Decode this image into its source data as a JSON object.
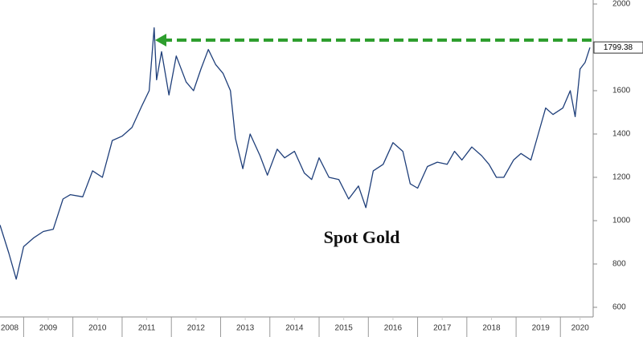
{
  "chart_data": {
    "type": "line",
    "annotation": "Spot Gold",
    "x": [
      2008.52,
      2008.7,
      2008.85,
      2009.0,
      2009.2,
      2009.4,
      2009.6,
      2009.8,
      2009.95,
      2010.2,
      2010.4,
      2010.6,
      2010.8,
      2011.0,
      2011.2,
      2011.4,
      2011.55,
      2011.65,
      2011.7,
      2011.8,
      2011.95,
      2012.1,
      2012.3,
      2012.45,
      2012.6,
      2012.75,
      2012.9,
      2013.05,
      2013.2,
      2013.3,
      2013.45,
      2013.6,
      2013.8,
      2013.95,
      2014.15,
      2014.3,
      2014.5,
      2014.7,
      2014.85,
      2015.0,
      2015.2,
      2015.4,
      2015.6,
      2015.8,
      2015.95,
      2016.1,
      2016.3,
      2016.5,
      2016.7,
      2016.85,
      2017.0,
      2017.2,
      2017.4,
      2017.6,
      2017.75,
      2017.9,
      2018.1,
      2018.3,
      2018.45,
      2018.6,
      2018.75,
      2018.95,
      2019.1,
      2019.3,
      2019.45,
      2019.6,
      2019.75,
      2019.95,
      2020.1,
      2020.2,
      2020.3,
      2020.4,
      2020.5
    ],
    "series": [
      {
        "color": "#1f3f7a",
        "values": [
          980,
          850,
          730,
          880,
          920,
          950,
          960,
          1100,
          1120,
          1110,
          1230,
          1200,
          1370,
          1390,
          1430,
          1530,
          1600,
          1890,
          1650,
          1780,
          1580,
          1760,
          1640,
          1600,
          1700,
          1790,
          1720,
          1680,
          1600,
          1380,
          1240,
          1400,
          1300,
          1210,
          1330,
          1290,
          1320,
          1220,
          1190,
          1290,
          1200,
          1190,
          1100,
          1160,
          1060,
          1230,
          1260,
          1360,
          1320,
          1170,
          1150,
          1250,
          1270,
          1260,
          1320,
          1280,
          1340,
          1300,
          1260,
          1200,
          1200,
          1280,
          1310,
          1280,
          1400,
          1520,
          1490,
          1520,
          1600,
          1480,
          1700,
          1730,
          1799.38
        ]
      }
    ],
    "xlim": [
      2008.52,
      2020.5
    ],
    "xticks": [
      {
        "value": 2008.5,
        "label": "2008"
      },
      {
        "value": 2009.5,
        "label": "2009"
      },
      {
        "value": 2010.5,
        "label": "2010"
      },
      {
        "value": 2011.5,
        "label": "2011"
      },
      {
        "value": 2012.5,
        "label": "2012"
      },
      {
        "value": 2013.5,
        "label": "2013"
      },
      {
        "value": 2014.5,
        "label": "2014"
      },
      {
        "value": 2015.5,
        "label": "2015"
      },
      {
        "value": 2016.5,
        "label": "2016"
      },
      {
        "value": 2017.5,
        "label": "2017"
      },
      {
        "value": 2018.5,
        "label": "2018"
      },
      {
        "value": 2019.5,
        "label": "2019"
      },
      {
        "value": 2020.3,
        "label": "2020"
      }
    ],
    "ylim": [
      600,
      2000
    ],
    "yticks": [
      600,
      800,
      1000,
      1200,
      1400,
      1600,
      1800,
      2000
    ]
  }
}
